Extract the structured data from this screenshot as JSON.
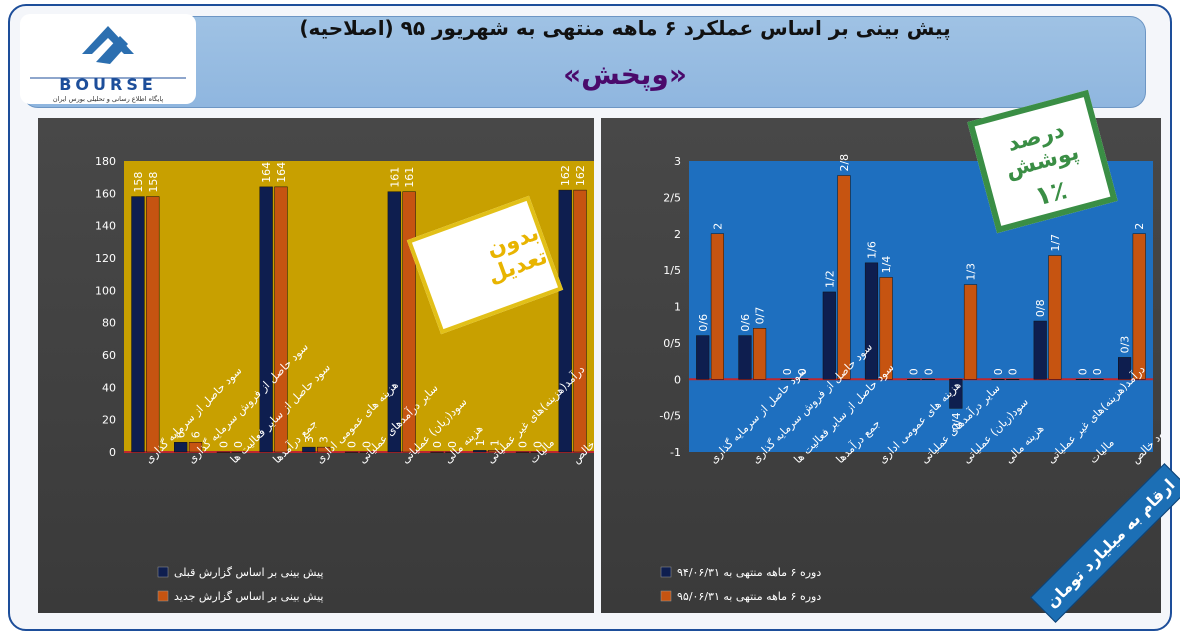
{
  "header": {
    "title": "پیش بینی بر اساس عملکرد ۶ ماهه منتهی به شهریور ۹۵ (اصلاحیه)",
    "subtitle": "«وپخش»"
  },
  "logo": {
    "name": "BOURSE",
    "tagline": "پایگاه اطلاع رسانی و تحلیلی بورس ایران",
    "mark": "24"
  },
  "stamps": {
    "no_adjustment": "بدون تعدیل",
    "coverage_title": "درصد پوشش",
    "coverage_value": "۱٪"
  },
  "units_banner": "ارقام به میلیارد تومان",
  "colors": {
    "series_a": "#0e1e4f",
    "series_b": "#c65411",
    "left_plot_bg": "#c8a000",
    "right_plot_bg": "#1e6fbf",
    "zero_line": "#c0272d"
  },
  "chart_data": [
    {
      "type": "bar",
      "categories": [
        "سود حاصل از سرمایه گذاری",
        "سود حاصل از فروش سرمایه گذاری",
        "سود حاصل از سایر فعالیت ها",
        "جمع درآمدها",
        "هزینه های عمومی اداری",
        "سایر درآمدهای عملیاتی",
        "سود(زیان) عملیاتی",
        "هزینه مالی",
        "درآمد(هزینه)های غیر عملیاتی",
        "مالیات",
        "سود خالص"
      ],
      "series": [
        {
          "name": "پیش بینی بر اساس گزارش قبلی",
          "values": [
            158,
            6,
            0,
            164,
            3,
            0,
            161,
            0,
            1,
            0,
            162
          ],
          "labels": [
            "158",
            "6",
            "0",
            "164",
            "3",
            "0",
            "161",
            "0",
            "1",
            "0",
            "162"
          ]
        },
        {
          "name": "پیش بینی بر اساس گزارش جدید",
          "values": [
            158,
            6,
            0,
            164,
            3,
            0,
            161,
            0,
            1,
            0,
            162
          ],
          "labels": [
            "158",
            "6",
            "0",
            "164",
            "3",
            "0",
            "161",
            "0",
            "1",
            "0",
            "162"
          ]
        }
      ],
      "ylim": [
        0,
        180
      ],
      "yticks": [
        "0",
        "20",
        "40",
        "60",
        "80",
        "100",
        "120",
        "140",
        "160",
        "180"
      ],
      "grid": false,
      "legend": "bottom"
    },
    {
      "type": "bar",
      "categories": [
        "سود حاصل از سرمایه گذاری",
        "سود حاصل از فروش سرمایه گذاری",
        "سود حاصل از سایر فعالیت ها",
        "جمع درآمدها",
        "هزینه های عمومی اداری",
        "سایر درآمدهای عملیاتی",
        "سود(زیان) عملیاتی",
        "هزینه مالی",
        "درآمد(هزینه)های غیر عملیاتی",
        "مالیات",
        "سود خالص"
      ],
      "series": [
        {
          "name": "دوره ۶ ماهه منتهی به ۹۴/۰۶/۳۱",
          "values": [
            0.6,
            0.6,
            0,
            1.2,
            1.6,
            0,
            -0.4,
            0,
            0.8,
            0,
            0.3
          ],
          "labels": [
            "0/6",
            "0/6",
            "0",
            "1/2",
            "1/6",
            "0",
            "-0/4",
            "0",
            "0/8",
            "0",
            "0/3"
          ]
        },
        {
          "name": "دوره ۶ ماهه منتهی به ۹۵/۰۶/۳۱",
          "values": [
            2,
            0.7,
            0,
            2.8,
            1.4,
            0,
            1.3,
            0,
            1.7,
            0,
            2
          ],
          "labels": [
            "2",
            "0/7",
            "0",
            "2/8",
            "1/4",
            "0",
            "1/3",
            "0",
            "1/7",
            "0",
            "2"
          ]
        }
      ],
      "ylim": [
        -1,
        3
      ],
      "yticks": [
        "-1",
        "-0/5",
        "0",
        "0/5",
        "1",
        "1/5",
        "2",
        "2/5",
        "3"
      ],
      "grid": false,
      "legend": "bottom"
    }
  ]
}
